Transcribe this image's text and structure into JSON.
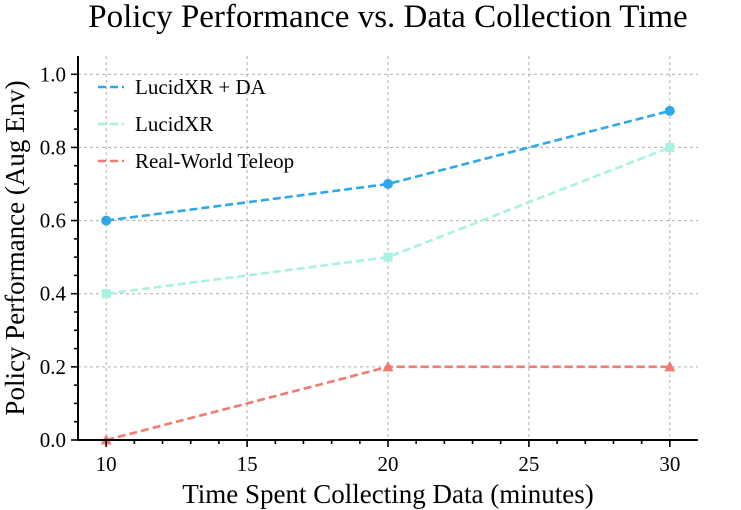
{
  "chart_data": {
    "type": "line",
    "title": "Policy Performance vs. Data Collection Time",
    "xlabel": "Time Spent Collecting Data (minutes)",
    "ylabel": "Policy Performance (Aug Env)",
    "x": [
      10,
      20,
      30
    ],
    "xlim": [
      9,
      31
    ],
    "ylim": [
      0,
      1.05
    ],
    "xticks": [
      "10",
      "15",
      "20",
      "25",
      "30"
    ],
    "yticks": [
      "0.0",
      "0.2",
      "0.4",
      "0.6",
      "0.8",
      "1.0"
    ],
    "grid": true,
    "legend_position": "top-left",
    "series": [
      {
        "name": "LucidXR + DA",
        "values": [
          0.6,
          0.7,
          0.9
        ],
        "color": "#2ea8e8",
        "marker": "circle",
        "line": "dashed"
      },
      {
        "name": "LucidXR",
        "values": [
          0.4,
          0.5,
          0.8
        ],
        "color": "#a8f2e4",
        "marker": "square",
        "line": "dashed"
      },
      {
        "name": "Real-World Teleop",
        "values": [
          0.0,
          0.2,
          0.2
        ],
        "color": "#f07b72",
        "marker": "triangle",
        "line": "dashed"
      }
    ]
  }
}
